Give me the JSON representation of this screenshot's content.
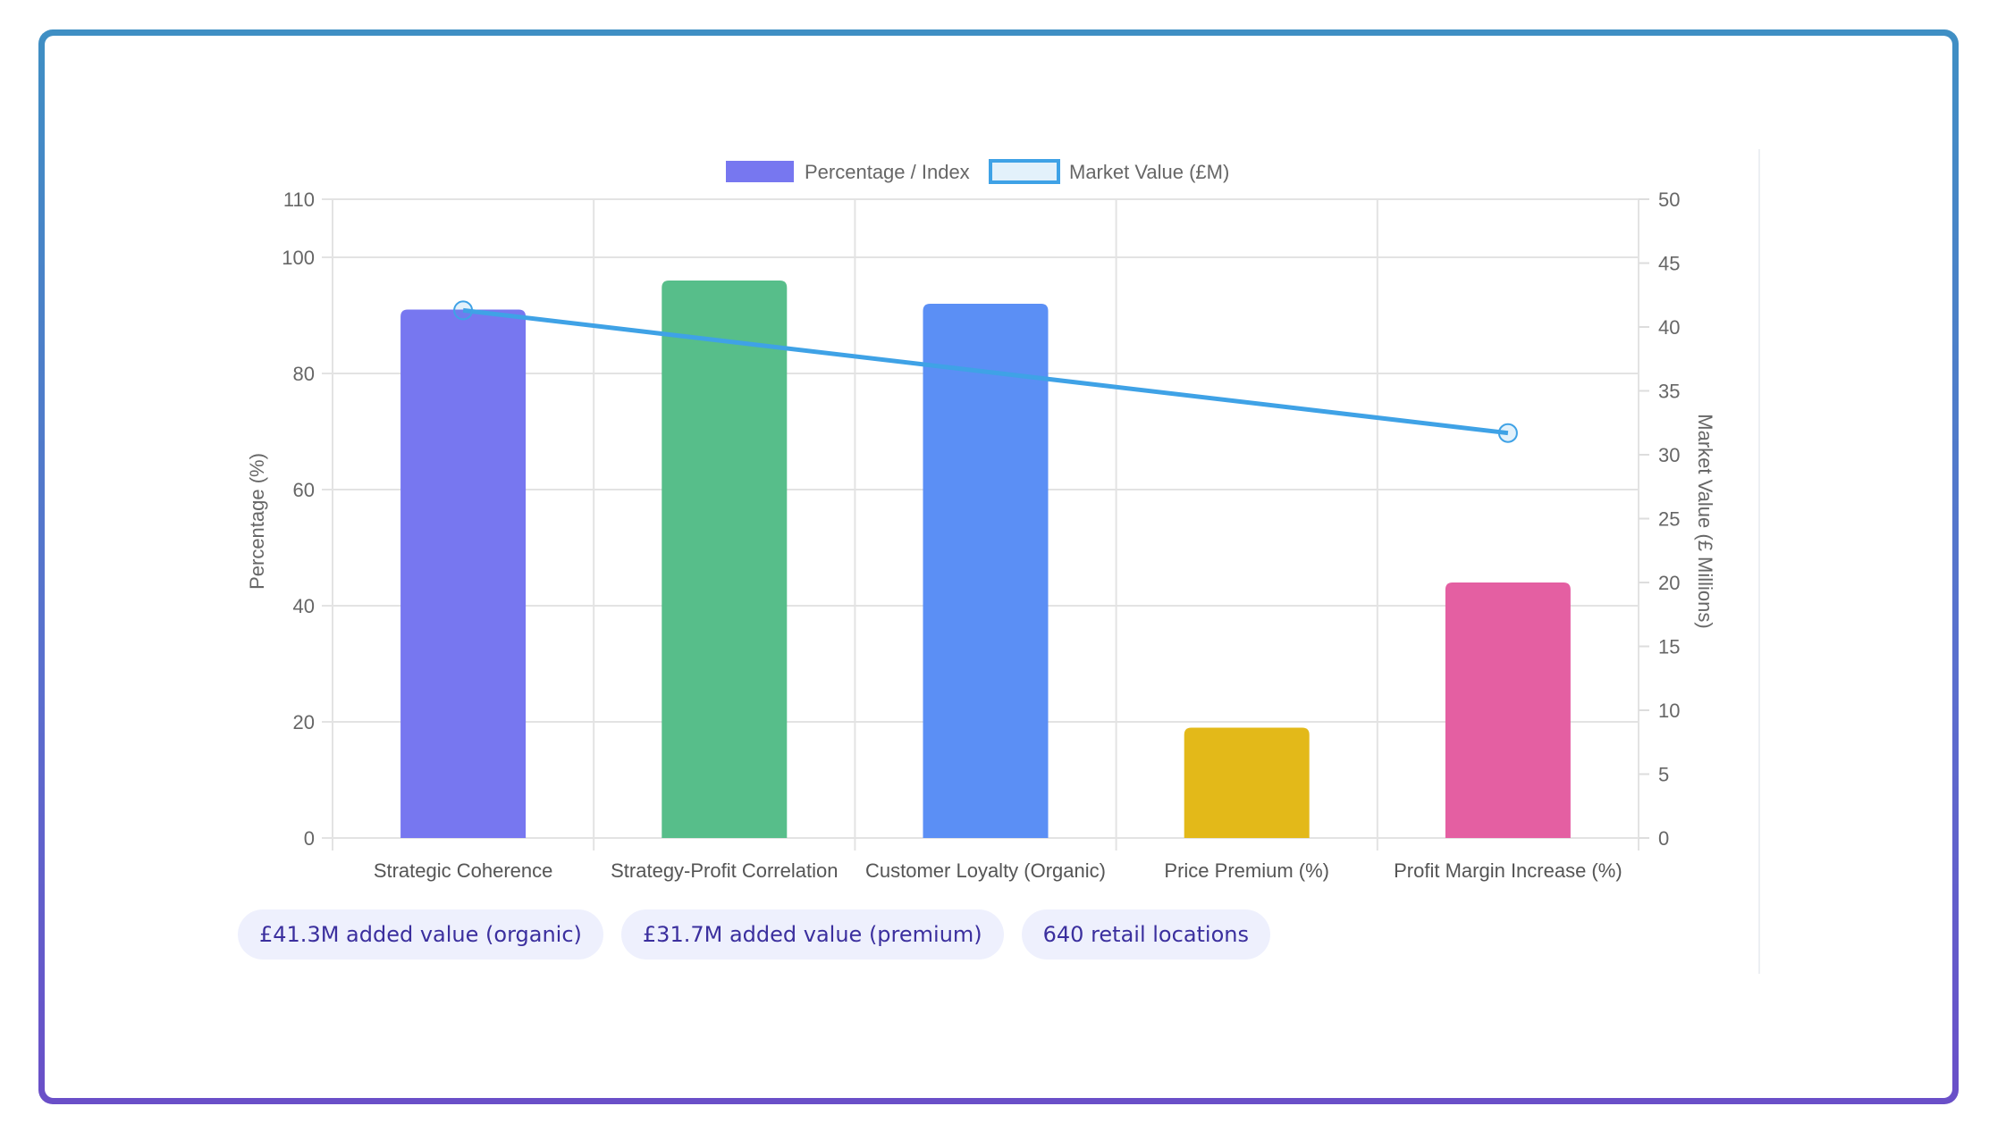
{
  "chart_data": {
    "type": "bar+line",
    "categories": [
      "Strategic Coherence",
      "Strategy-Profit Correlation",
      "Customer Loyalty (Organic)",
      "Price Premium (%)",
      "Profit Margin Increase (%)"
    ],
    "series": [
      {
        "name": "Percentage / Index",
        "type": "bar",
        "axis": "left",
        "values": [
          91,
          96,
          92,
          19,
          44
        ],
        "colors": [
          "#7777f0",
          "#57be8a",
          "#5b8ff5",
          "#e3b919",
          "#e45fa2"
        ]
      },
      {
        "name": "Market Value (£M)",
        "type": "line",
        "axis": "right",
        "values": [
          41.3,
          null,
          null,
          null,
          31.7
        ],
        "color": "#3fa2e6"
      }
    ],
    "ylabel": "Percentage (%)",
    "y2label": "Market Value (£ Millions)",
    "ylim": [
      0,
      110
    ],
    "yticks": [
      0,
      20,
      40,
      60,
      80,
      100,
      110
    ],
    "y2lim": [
      0,
      50
    ],
    "y2ticks": [
      0,
      5,
      10,
      15,
      20,
      25,
      30,
      35,
      40,
      45,
      50
    ],
    "legend": "top",
    "grid": true
  },
  "pills": [
    "£41.3M added value (organic)",
    "£31.7M added value (premium)",
    "640 retail locations"
  ]
}
